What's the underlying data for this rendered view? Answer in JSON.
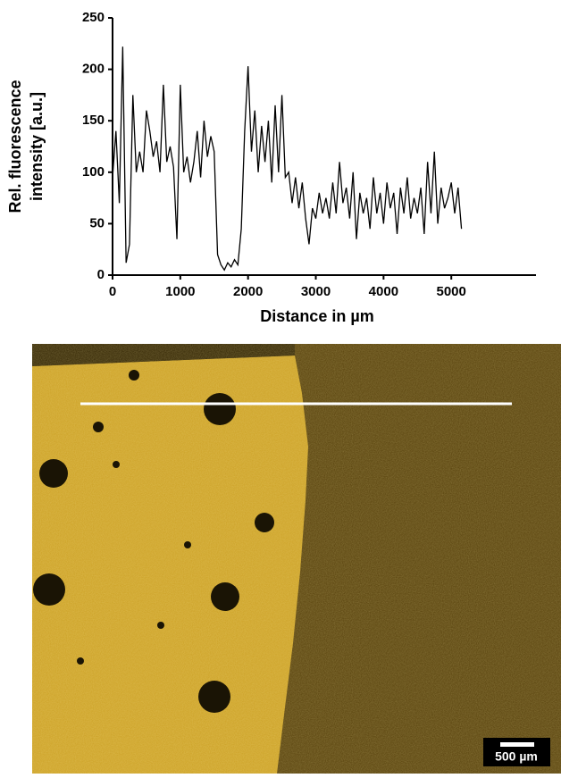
{
  "chart_data": {
    "type": "line",
    "ylabel": [
      "Rel. fluorescence",
      "intensity [a.u.]"
    ],
    "xlabel": "Distance in µm",
    "scale_bar": "500 µm",
    "xlim": [
      0,
      6250
    ],
    "ylim": [
      0,
      250
    ],
    "xticks": [
      0,
      1000,
      2000,
      3000,
      4000,
      5000
    ],
    "yticks": [
      0,
      50,
      100,
      150,
      200,
      250
    ],
    "x": [
      0,
      50,
      100,
      150,
      200,
      250,
      300,
      350,
      400,
      450,
      500,
      550,
      600,
      650,
      700,
      750,
      800,
      850,
      900,
      950,
      1000,
      1050,
      1100,
      1150,
      1200,
      1250,
      1300,
      1350,
      1400,
      1450,
      1500,
      1550,
      1600,
      1650,
      1700,
      1750,
      1800,
      1850,
      1900,
      1950,
      2000,
      2050,
      2100,
      2150,
      2200,
      2250,
      2300,
      2350,
      2400,
      2450,
      2500,
      2550,
      2600,
      2650,
      2700,
      2750,
      2800,
      2850,
      2900,
      2950,
      3000,
      3050,
      3100,
      3150,
      3200,
      3250,
      3300,
      3350,
      3400,
      3450,
      3500,
      3550,
      3600,
      3650,
      3700,
      3750,
      3800,
      3850,
      3900,
      3950,
      4000,
      4050,
      4100,
      4150,
      4200,
      4250,
      4300,
      4350,
      4400,
      4450,
      4500,
      4550,
      4600,
      4650,
      4700,
      4750,
      4800,
      4850,
      4900,
      4950,
      5000,
      5050,
      5100,
      5150
    ],
    "series": [
      {
        "color": "#000000",
        "values": [
          95,
          140,
          70,
          222,
          12,
          30,
          175,
          100,
          120,
          100,
          160,
          140,
          115,
          130,
          100,
          185,
          110,
          125,
          105,
          35,
          185,
          100,
          115,
          90,
          110,
          140,
          95,
          150,
          115,
          135,
          120,
          20,
          10,
          5,
          12,
          8,
          15,
          10,
          45,
          140,
          203,
          120,
          160,
          100,
          145,
          110,
          150,
          90,
          165,
          100,
          175,
          95,
          100,
          70,
          95,
          65,
          90,
          55,
          30,
          65,
          55,
          80,
          60,
          75,
          55,
          90,
          60,
          110,
          70,
          85,
          55,
          100,
          35,
          80,
          60,
          75,
          45,
          95,
          60,
          80,
          50,
          90,
          65,
          80,
          40,
          85,
          60,
          95,
          55,
          75,
          60,
          85,
          40,
          110,
          60,
          120,
          50,
          85,
          65,
          75,
          90,
          60,
          85,
          45
        ]
      }
    ]
  }
}
